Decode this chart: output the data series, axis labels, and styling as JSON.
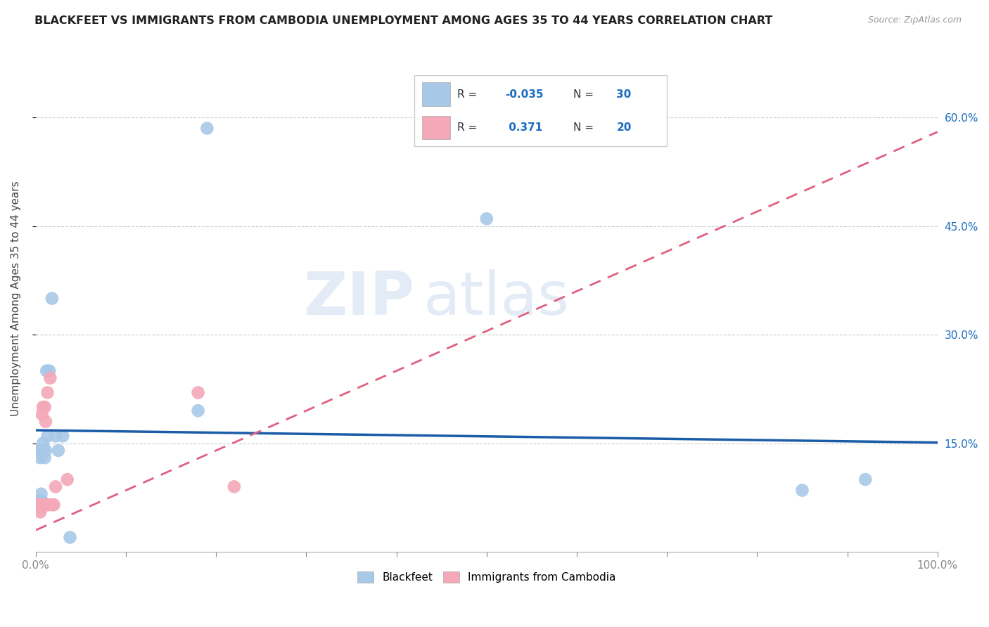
{
  "title": "BLACKFEET VS IMMIGRANTS FROM CAMBODIA UNEMPLOYMENT AMONG AGES 35 TO 44 YEARS CORRELATION CHART",
  "source": "Source: ZipAtlas.com",
  "ylabel": "Unemployment Among Ages 35 to 44 years",
  "xlim": [
    0.0,
    1.0
  ],
  "ylim": [
    0.0,
    0.7
  ],
  "xticks": [
    0.0,
    0.1,
    0.2,
    0.3,
    0.4,
    0.5,
    0.6,
    0.7,
    0.8,
    0.9,
    1.0
  ],
  "xticklabels": [
    "0.0%",
    "",
    "",
    "",
    "",
    "",
    "",
    "",
    "",
    "",
    "100.0%"
  ],
  "yticks": [
    0.15,
    0.3,
    0.45,
    0.6
  ],
  "yticklabels": [
    "15.0%",
    "30.0%",
    "45.0%",
    "60.0%"
  ],
  "blackfeet_R": "-0.035",
  "blackfeet_N": "30",
  "cambodia_R": "0.371",
  "cambodia_N": "20",
  "blackfeet_color": "#a8c8e8",
  "cambodia_color": "#f4a8b8",
  "blackfeet_line_color": "#1a5ca8",
  "cambodia_line_color": "#e06080",
  "background_color": "#ffffff",
  "grid_color": "#cccccc",
  "blackfeet_x": [
    0.002,
    0.003,
    0.003,
    0.004,
    0.004,
    0.005,
    0.005,
    0.006,
    0.006,
    0.006,
    0.007,
    0.007,
    0.008,
    0.008,
    0.009,
    0.01,
    0.011,
    0.012,
    0.013,
    0.015,
    0.018,
    0.022,
    0.025,
    0.03,
    0.038,
    0.18,
    0.19,
    0.5,
    0.85,
    0.92
  ],
  "blackfeet_y": [
    0.06,
    0.065,
    0.07,
    0.065,
    0.14,
    0.13,
    0.14,
    0.065,
    0.07,
    0.08,
    0.065,
    0.07,
    0.14,
    0.15,
    0.14,
    0.13,
    0.14,
    0.25,
    0.16,
    0.25,
    0.35,
    0.16,
    0.14,
    0.16,
    0.02,
    0.195,
    0.585,
    0.46,
    0.085,
    0.1
  ],
  "cambodia_x": [
    0.003,
    0.004,
    0.005,
    0.005,
    0.006,
    0.007,
    0.008,
    0.009,
    0.01,
    0.011,
    0.012,
    0.013,
    0.014,
    0.016,
    0.018,
    0.02,
    0.022,
    0.035,
    0.18,
    0.22
  ],
  "cambodia_y": [
    0.065,
    0.065,
    0.055,
    0.065,
    0.06,
    0.19,
    0.2,
    0.065,
    0.2,
    0.18,
    0.065,
    0.22,
    0.065,
    0.24,
    0.065,
    0.065,
    0.09,
    0.1,
    0.22,
    0.09
  ],
  "blackfeet_trend": [
    -0.017,
    0.168
  ],
  "cambodia_trend": [
    0.55,
    0.03
  ],
  "watermark_top": "ZIP",
  "watermark_bot": "atlas"
}
